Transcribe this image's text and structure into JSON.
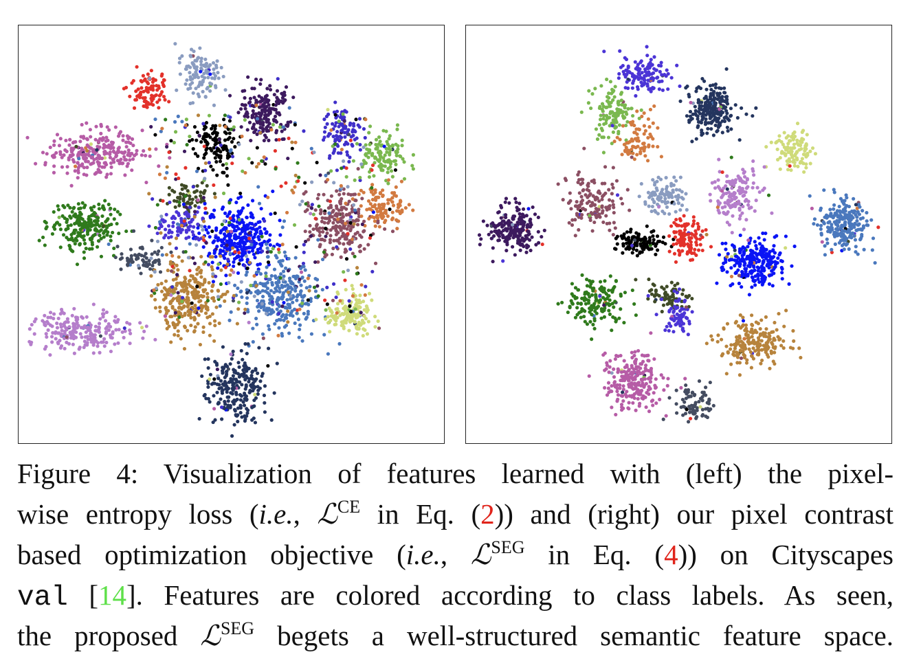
{
  "chart_data": [
    {
      "type": "scatter",
      "panel": "left",
      "xlim": [
        0,
        100
      ],
      "ylim": [
        0,
        100
      ],
      "grid": false,
      "axes_ticks": false,
      "clusters": [
        {
          "color": "#e3312a",
          "x": 30,
          "y": 86,
          "sx": 2.5,
          "sy": 2.5,
          "n": 90
        },
        {
          "color": "#8a9cc0",
          "x": 42,
          "y": 90,
          "sx": 2.2,
          "sy": 3.5,
          "n": 110
        },
        {
          "color": "#b65ca6",
          "x": 17,
          "y": 70,
          "sx": 5.5,
          "sy": 2.8,
          "n": 260
        },
        {
          "color": "#3d1a5e",
          "x": 58,
          "y": 80,
          "sx": 3,
          "sy": 3.5,
          "n": 200
        },
        {
          "color": "#000000",
          "x": 46,
          "y": 72,
          "sx": 2.6,
          "sy": 3,
          "n": 110
        },
        {
          "color": "#3f2fc9",
          "x": 77,
          "y": 75,
          "sx": 2.5,
          "sy": 3.5,
          "n": 110
        },
        {
          "color": "#7ab84f",
          "x": 87,
          "y": 70,
          "sx": 3,
          "sy": 3,
          "n": 120
        },
        {
          "color": "#2f7a1c",
          "x": 14,
          "y": 52,
          "sx": 4,
          "sy": 3,
          "n": 230
        },
        {
          "color": "#3f4a26",
          "x": 40,
          "y": 59,
          "sx": 3,
          "sy": 2,
          "n": 70
        },
        {
          "color": "#4b34d6",
          "x": 38,
          "y": 53,
          "sx": 3,
          "sy": 2.5,
          "n": 80
        },
        {
          "color": "#0a14f5",
          "x": 52,
          "y": 49,
          "sx": 4,
          "sy": 4,
          "n": 320
        },
        {
          "color": "#8b4f63",
          "x": 76,
          "y": 53,
          "sx": 4,
          "sy": 4,
          "n": 220
        },
        {
          "color": "#d27a40",
          "x": 87,
          "y": 57,
          "sx": 3,
          "sy": 2.5,
          "n": 110
        },
        {
          "color": "#444c60",
          "x": 28,
          "y": 44,
          "sx": 3,
          "sy": 1.8,
          "n": 70
        },
        {
          "color": "#b7833c",
          "x": 40,
          "y": 34,
          "sx": 4,
          "sy": 4.5,
          "n": 290
        },
        {
          "color": "#4a78bd",
          "x": 62,
          "y": 34,
          "sx": 4.5,
          "sy": 4.5,
          "n": 280
        },
        {
          "color": "#cfdb7a",
          "x": 79,
          "y": 30,
          "sx": 3,
          "sy": 2.8,
          "n": 140
        },
        {
          "color": "#b57ecb",
          "x": 14,
          "y": 26,
          "sx": 6,
          "sy": 2.5,
          "n": 220
        },
        {
          "color": "#24355e",
          "x": 51,
          "y": 12,
          "sx": 4,
          "sy": 4.5,
          "n": 240
        }
      ],
      "noise_colors": [
        "#3d1a5e",
        "#7ab84f",
        "#4a78bd",
        "#3f2fc9",
        "#000000",
        "#e3312a",
        "#2f7a1c",
        "#b7833c",
        "#8a9cc0",
        "#d27a40"
      ]
    },
    {
      "type": "scatter",
      "panel": "right",
      "xlim": [
        0,
        100
      ],
      "ylim": [
        0,
        100
      ],
      "grid": false,
      "axes_ticks": false,
      "clusters": [
        {
          "color": "#4b34d6",
          "x": 42,
          "y": 90,
          "sx": 3,
          "sy": 2.5,
          "n": 130
        },
        {
          "color": "#7ab84f",
          "x": 34,
          "y": 80,
          "sx": 2.8,
          "sy": 3.5,
          "n": 120
        },
        {
          "color": "#d27a40",
          "x": 40,
          "y": 73,
          "sx": 2,
          "sy": 3,
          "n": 80
        },
        {
          "color": "#24355e",
          "x": 58,
          "y": 81,
          "sx": 3,
          "sy": 3,
          "n": 220
        },
        {
          "color": "#cfdb7a",
          "x": 78,
          "y": 71,
          "sx": 2.2,
          "sy": 2.5,
          "n": 110
        },
        {
          "color": "#8b4f63",
          "x": 29,
          "y": 58,
          "sx": 3.5,
          "sy": 3.5,
          "n": 140
        },
        {
          "color": "#8a9cc0",
          "x": 47,
          "y": 59,
          "sx": 2.8,
          "sy": 2.2,
          "n": 100
        },
        {
          "color": "#b57ecb",
          "x": 64,
          "y": 60,
          "sx": 3,
          "sy": 3.5,
          "n": 150
        },
        {
          "color": "#4a78bd",
          "x": 90,
          "y": 52,
          "sx": 3,
          "sy": 3,
          "n": 230
        },
        {
          "color": "#3d1a5e",
          "x": 10,
          "y": 51,
          "sx": 3,
          "sy": 3,
          "n": 200
        },
        {
          "color": "#000000",
          "x": 41,
          "y": 48,
          "sx": 3,
          "sy": 1.5,
          "n": 110
        },
        {
          "color": "#e3312a",
          "x": 52,
          "y": 49,
          "sx": 2,
          "sy": 2.5,
          "n": 110
        },
        {
          "color": "#0a14f5",
          "x": 68,
          "y": 43,
          "sx": 4,
          "sy": 3,
          "n": 260
        },
        {
          "color": "#2f7a1c",
          "x": 30,
          "y": 34,
          "sx": 3.5,
          "sy": 3,
          "n": 160
        },
        {
          "color": "#3f4a26",
          "x": 48,
          "y": 35,
          "sx": 2.5,
          "sy": 1.8,
          "n": 70
        },
        {
          "color": "#4b34d6",
          "x": 50,
          "y": 30,
          "sx": 2,
          "sy": 2.5,
          "n": 70
        },
        {
          "color": "#b7833c",
          "x": 68,
          "y": 23,
          "sx": 4,
          "sy": 2.8,
          "n": 200
        },
        {
          "color": "#b65ca6",
          "x": 39,
          "y": 14,
          "sx": 3.5,
          "sy": 3.5,
          "n": 230
        },
        {
          "color": "#444c60",
          "x": 54,
          "y": 8,
          "sx": 2.5,
          "sy": 2.2,
          "n": 80
        }
      ],
      "noise_colors": []
    }
  ],
  "caption": {
    "l1": "Figure 4:  Visualization of features learned with (left) the pixel-",
    "l2a": "wise entropy loss (",
    "l2i": "i.e.",
    "l2b": ", ",
    "l2c": "ℒ",
    "l2s": "CE",
    "l2d": " in Eq. (",
    "l2r": "2",
    "l2e": ")) and (right) our pixel contrast",
    "l3a": "based optimization objective (",
    "l3i": "i.e.",
    "l3b": ", ",
    "l3c": "ℒ",
    "l3s": "SEG",
    "l3d": " in Eq. (",
    "l3r": "4",
    "l3e": ")) on Cityscapes",
    "l4m": "val",
    "l4a": " [",
    "l4g": "14",
    "l4b": "]. Features are colored according to class labels. As seen,",
    "l5a": "the proposed ",
    "l5c": "ℒ",
    "l5s": "SEG",
    "l5b": " begets a well-structured semantic feature space."
  }
}
